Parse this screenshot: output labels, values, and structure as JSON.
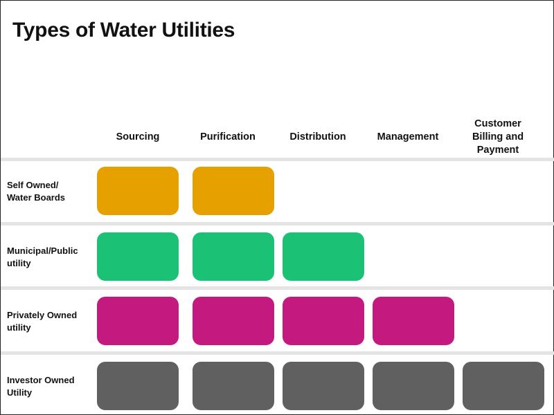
{
  "title": "Types of Water Utilities",
  "columns": [
    {
      "line1": "Sourcing",
      "line2": "",
      "line3": ""
    },
    {
      "line1": "Purification",
      "line2": "",
      "line3": ""
    },
    {
      "line1": "Distribution",
      "line2": "",
      "line3": ""
    },
    {
      "line1": "Management",
      "line2": "",
      "line3": ""
    },
    {
      "line1": "Customer",
      "line2": "Billing and",
      "line3": "Payment"
    }
  ],
  "rows": [
    {
      "line1": "Self Owned/",
      "line2": "Water Boards",
      "color": "#E6A000",
      "covered_stages": 2
    },
    {
      "line1": "Municipal/Public",
      "line2": "utility",
      "color": "#1BC276",
      "covered_stages": 3
    },
    {
      "line1": "Privately Owned",
      "line2": "utility",
      "color": "#C4197E",
      "covered_stages": 4
    },
    {
      "line1": "Investor Owned",
      "line2": "Utility",
      "color": "#606060",
      "covered_stages": 5
    }
  ]
}
